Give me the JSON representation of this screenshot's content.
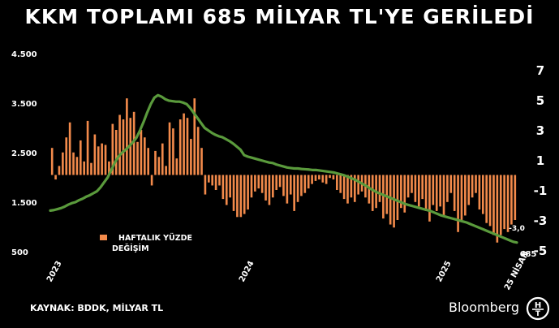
{
  "title": "KKM TOPLAMI 685 MİLYAR TL'YE GERİLEDİ",
  "source": "KAYNAK: BDDK, MİLYAR TL",
  "brand": "Bloomberg",
  "legend": {
    "line1": "HAFTALIK YÜZDE",
    "line2": "DEĞİŞİM"
  },
  "colors": {
    "background": "#000000",
    "bars": "#f28a4b",
    "line": "#5a9a3c",
    "text": "#ffffff"
  },
  "chart_data": {
    "type": "bar+line",
    "left_axis": {
      "ticks": [
        "4.500",
        "3.500",
        "2.500",
        "1.500",
        "500"
      ],
      "range": [
        500,
        4500
      ]
    },
    "right_axis": {
      "ticks": [
        "7",
        "5",
        "3",
        "1",
        "-1",
        "-3",
        "-5"
      ],
      "range": [
        -5,
        7
      ]
    },
    "x_labels": [
      "2023",
      "2024",
      "2025",
      "25 NİSAN"
    ],
    "annotations": {
      "last_bar": "-3,0",
      "last_line": "685"
    },
    "series": [
      {
        "kind": "line",
        "axis": "left",
        "values": [
          1330,
          1340,
          1360,
          1380,
          1410,
          1450,
          1480,
          1500,
          1540,
          1570,
          1610,
          1640,
          1680,
          1720,
          1800,
          1900,
          2000,
          2150,
          2300,
          2420,
          2500,
          2560,
          2630,
          2710,
          2800,
          2950,
          3120,
          3310,
          3480,
          3610,
          3660,
          3630,
          3580,
          3550,
          3540,
          3530,
          3530,
          3510,
          3480,
          3400,
          3300,
          3200,
          3100,
          3000,
          2950,
          2900,
          2860,
          2830,
          2810,
          2770,
          2730,
          2680,
          2620,
          2560,
          2450,
          2420,
          2400,
          2380,
          2360,
          2340,
          2320,
          2300,
          2290,
          2260,
          2240,
          2220,
          2200,
          2190,
          2180,
          2180,
          2170,
          2165,
          2160,
          2150,
          2150,
          2140,
          2130,
          2120,
          2110,
          2100,
          2080,
          2060,
          2040,
          2010,
          1980,
          1950,
          1910,
          1870,
          1830,
          1780,
          1740,
          1700,
          1670,
          1640,
          1610,
          1580,
          1550,
          1520,
          1490,
          1460,
          1440,
          1420,
          1400,
          1380,
          1360,
          1340,
          1320,
          1290,
          1260,
          1230,
          1210,
          1190,
          1170,
          1150,
          1130,
          1110,
          1090,
          1060,
          1030,
          1000,
          970,
          940,
          910,
          880,
          850,
          820,
          790,
          760,
          730,
          700,
          685
        ]
      },
      {
        "kind": "bar",
        "axis": "right",
        "name": "HAFTALIK YÜZDE DEĞİŞİM",
        "values": [
          1.8,
          -0.3,
          0.6,
          1.5,
          2.5,
          3.5,
          1.5,
          1.2,
          2.3,
          0.9,
          3.6,
          0.8,
          2.7,
          1.9,
          2.1,
          2.0,
          0.9,
          3.4,
          3.0,
          4.0,
          3.7,
          5.1,
          3.8,
          4.2,
          2.2,
          3.0,
          2.5,
          1.8,
          -0.7,
          1.6,
          1.2,
          2.1,
          0.6,
          3.5,
          3.1,
          1.1,
          3.7,
          4.1,
          3.8,
          2.4,
          5.1,
          3.2,
          1.8,
          -1.3,
          -0.5,
          -0.7,
          -1.0,
          -0.7,
          -1.6,
          -2.0,
          -1.5,
          -2.4,
          -2.8,
          -2.8,
          -2.6,
          -2.3,
          -1.5,
          -1.1,
          -0.9,
          -1.2,
          -1.7,
          -2.0,
          -1.5,
          -1.0,
          -0.8,
          -1.4,
          -1.9,
          -1.3,
          -2.4,
          -1.8,
          -1.4,
          -1.2,
          -0.9,
          -0.6,
          -0.4,
          -0.3,
          -0.5,
          -0.6,
          -0.2,
          -0.3,
          -1.0,
          -1.2,
          -1.6,
          -1.9,
          -1.5,
          -1.8,
          -1.3,
          -1.1,
          -1.5,
          -1.9,
          -2.4,
          -2.2,
          -1.8,
          -2.9,
          -2.6,
          -3.3,
          -3.5,
          -3.0,
          -2.2,
          -2.5,
          -1.5,
          -1.2,
          -1.8,
          -2.1,
          -1.6,
          -2.4,
          -3.1,
          -2.0,
          -2.4,
          -2.1,
          -2.7,
          -1.8,
          -1.2,
          -2.4,
          -3.8,
          -3.0,
          -2.7,
          -2.0,
          -1.5,
          -1.2,
          -2.3,
          -2.6,
          -3.2,
          -3.4,
          -4.0,
          -4.5,
          -4.0,
          -3.6,
          -3.8,
          -3.3,
          -3.0
        ]
      }
    ]
  }
}
